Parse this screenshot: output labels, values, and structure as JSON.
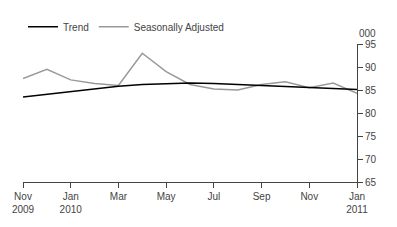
{
  "chart_data": {
    "type": "line",
    "ylabel": "000",
    "categories": [
      "Nov\n2009",
      null,
      "Jan\n2010",
      null,
      "Mar",
      null,
      "May",
      null,
      "Jul",
      null,
      "Sep",
      null,
      "Nov",
      null,
      "Jan\n2011"
    ],
    "series": [
      {
        "name": "Seasonally Adjusted",
        "color": "#999999",
        "values": [
          87.5,
          89.5,
          87.2,
          86.4,
          86.0,
          93.0,
          89.0,
          86.2,
          85.2,
          85.0,
          86.2,
          86.8,
          85.5,
          86.5,
          84.3
        ]
      },
      {
        "name": "Trend",
        "color": "#000000",
        "values": [
          83.5,
          84.1,
          84.7,
          85.3,
          85.8,
          86.2,
          86.4,
          86.5,
          86.4,
          86.2,
          85.9,
          85.7,
          85.5,
          85.3,
          85.1
        ]
      }
    ],
    "ylim": [
      65,
      95
    ],
    "yticks": [
      65,
      70,
      75,
      80,
      85,
      90,
      95
    ],
    "grid": false,
    "legend": "upper left"
  }
}
